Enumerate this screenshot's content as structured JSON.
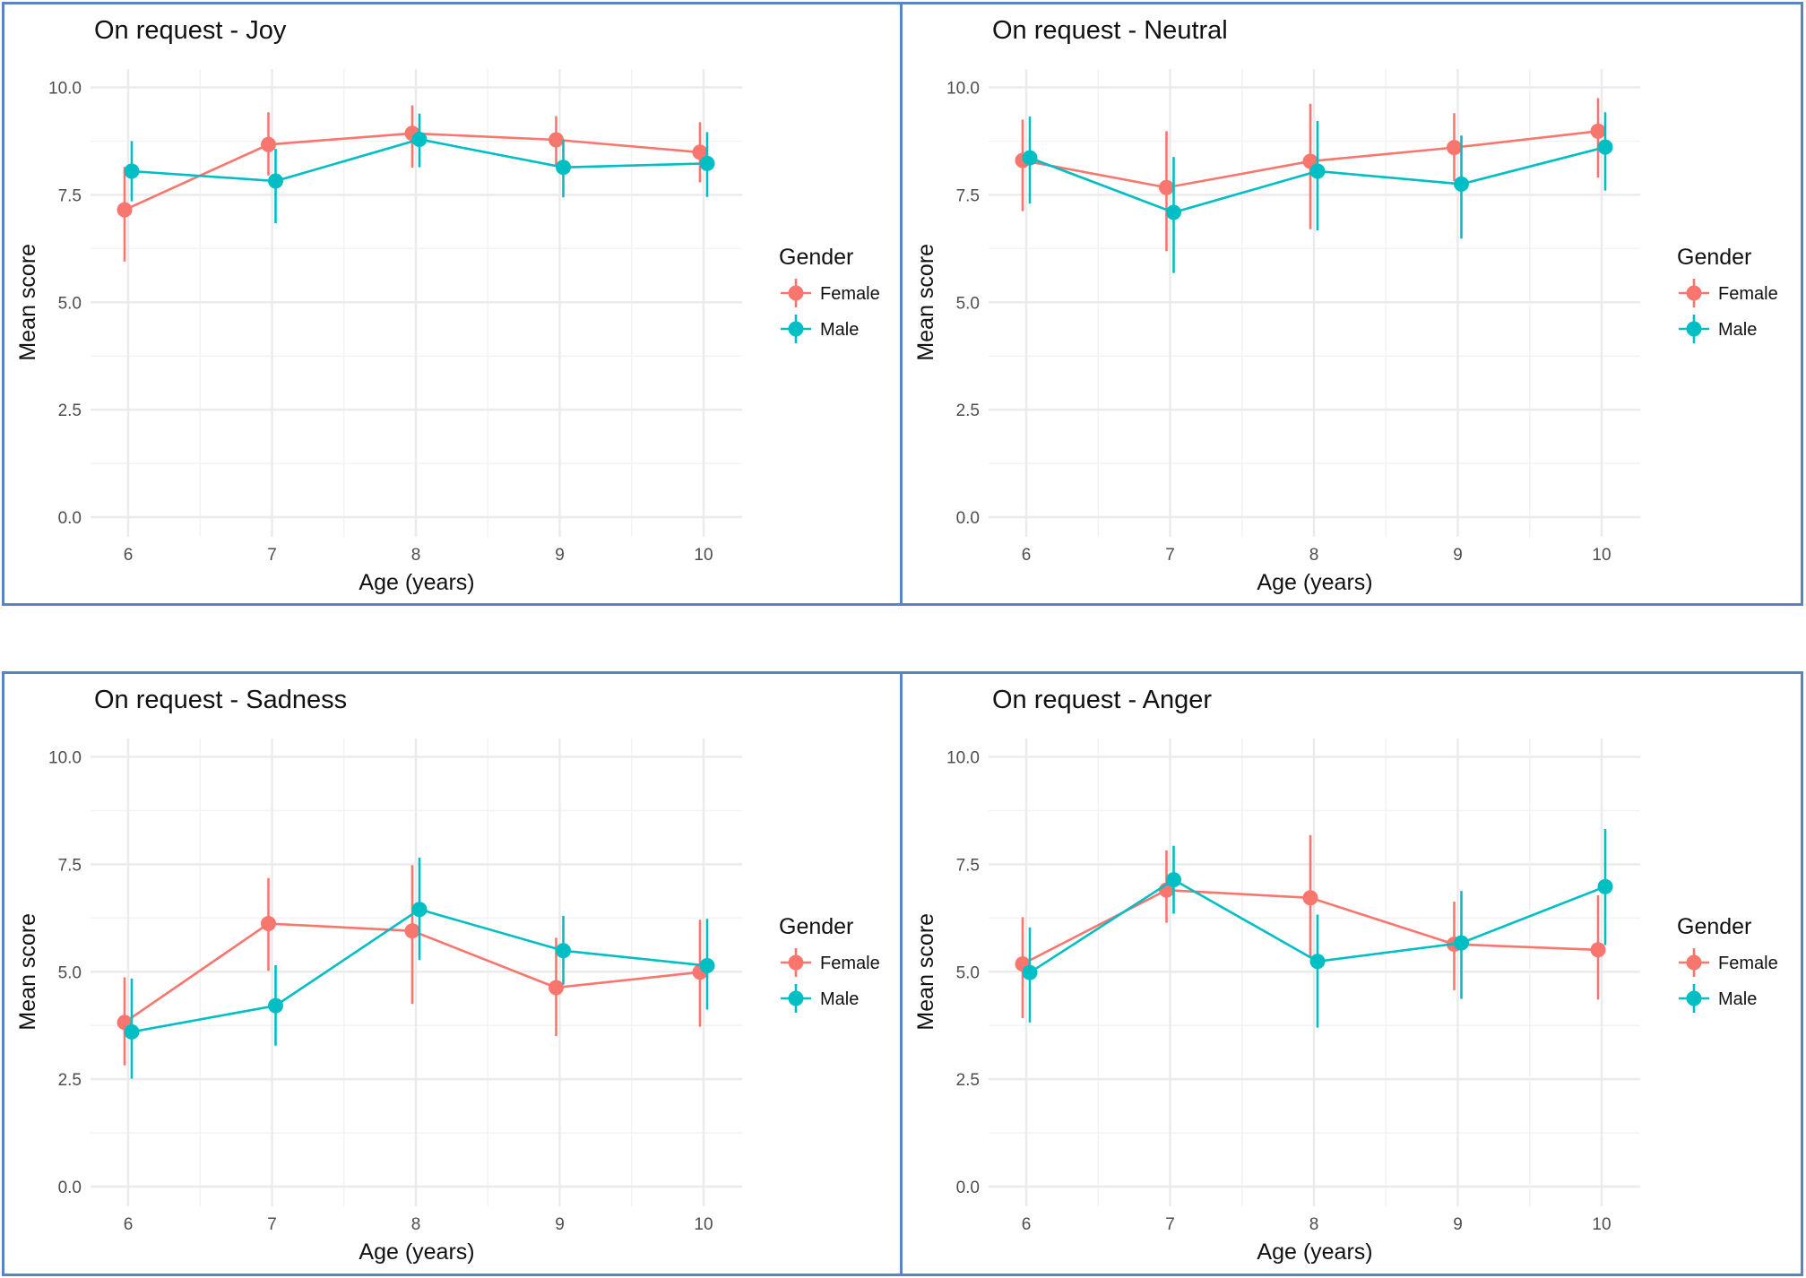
{
  "legend": {
    "title": "Gender"
  },
  "chart_data": [
    {
      "type": "line",
      "title": "On request - Joy",
      "xlabel": "Age (years)",
      "ylabel": "Mean score",
      "ylim": [
        0,
        10
      ],
      "categories": [
        "6",
        "7",
        "8",
        "9",
        "10"
      ],
      "yticks": [
        "0.0",
        "2.5",
        "5.0",
        "7.5",
        "10.0"
      ],
      "series": [
        {
          "name": "Female",
          "color": "#f8766d",
          "values": [
            7.15,
            8.67,
            8.93,
            8.78,
            8.49
          ],
          "lower": [
            5.95,
            7.95,
            8.13,
            8.18,
            7.79
          ],
          "upper": [
            8.15,
            9.42,
            9.58,
            9.33,
            9.19
          ]
        },
        {
          "name": "Male",
          "color": "#00bfc4",
          "values": [
            8.05,
            7.82,
            8.79,
            8.14,
            8.23
          ],
          "lower": [
            7.35,
            6.84,
            8.14,
            7.44,
            7.45
          ],
          "upper": [
            8.75,
            8.57,
            9.39,
            8.79,
            8.96
          ]
        }
      ]
    },
    {
      "type": "line",
      "title": "On request - Neutral",
      "xlabel": "Age (years)",
      "ylabel": "Mean score",
      "ylim": [
        0,
        10
      ],
      "categories": [
        "6",
        "7",
        "8",
        "9",
        "10"
      ],
      "yticks": [
        "0.0",
        "2.5",
        "5.0",
        "7.5",
        "10.0"
      ],
      "series": [
        {
          "name": "Female",
          "color": "#f8766d",
          "values": [
            8.3,
            7.67,
            8.28,
            8.6,
            8.98
          ],
          "lower": [
            7.12,
            6.19,
            6.7,
            7.82,
            7.9
          ],
          "upper": [
            9.25,
            8.98,
            9.62,
            9.4,
            9.75
          ]
        },
        {
          "name": "Male",
          "color": "#00bfc4",
          "values": [
            8.36,
            7.09,
            8.05,
            7.75,
            8.61
          ],
          "lower": [
            7.3,
            5.68,
            6.67,
            6.48,
            7.6
          ],
          "upper": [
            9.32,
            8.38,
            9.22,
            8.88,
            9.42
          ]
        }
      ]
    },
    {
      "type": "line",
      "title": "On request - Sadness",
      "xlabel": "Age (years)",
      "ylabel": "Mean score",
      "ylim": [
        0,
        10
      ],
      "categories": [
        "6",
        "7",
        "8",
        "9",
        "10"
      ],
      "yticks": [
        "0.0",
        "2.5",
        "5.0",
        "7.5",
        "10.0"
      ],
      "series": [
        {
          "name": "Female",
          "color": "#f8766d",
          "values": [
            3.82,
            6.12,
            5.95,
            4.63,
            4.99
          ],
          "lower": [
            2.82,
            5.02,
            4.25,
            3.5,
            3.72
          ],
          "upper": [
            4.87,
            7.18,
            7.48,
            5.79,
            6.21
          ]
        },
        {
          "name": "Male",
          "color": "#00bfc4",
          "values": [
            3.6,
            4.21,
            6.45,
            5.49,
            5.14
          ],
          "lower": [
            2.51,
            3.28,
            5.27,
            4.7,
            4.12
          ],
          "upper": [
            4.84,
            5.15,
            7.65,
            6.3,
            6.23
          ]
        }
      ]
    },
    {
      "type": "line",
      "title": "On request - Anger",
      "xlabel": "Age (years)",
      "ylabel": "Mean score",
      "ylim": [
        0,
        10
      ],
      "categories": [
        "6",
        "7",
        "8",
        "9",
        "10"
      ],
      "yticks": [
        "0.0",
        "2.5",
        "5.0",
        "7.5",
        "10.0"
      ],
      "series": [
        {
          "name": "Female",
          "color": "#f8766d",
          "values": [
            5.18,
            6.9,
            6.72,
            5.64,
            5.51
          ],
          "lower": [
            3.92,
            6.14,
            5.33,
            4.57,
            4.35
          ],
          "upper": [
            6.27,
            7.82,
            8.18,
            6.63,
            6.78
          ]
        },
        {
          "name": "Male",
          "color": "#00bfc4",
          "values": [
            4.98,
            7.14,
            5.24,
            5.67,
            6.98
          ],
          "lower": [
            3.82,
            6.35,
            3.7,
            4.37,
            5.62
          ],
          "upper": [
            6.03,
            7.93,
            6.33,
            6.88,
            8.32
          ]
        }
      ]
    }
  ]
}
